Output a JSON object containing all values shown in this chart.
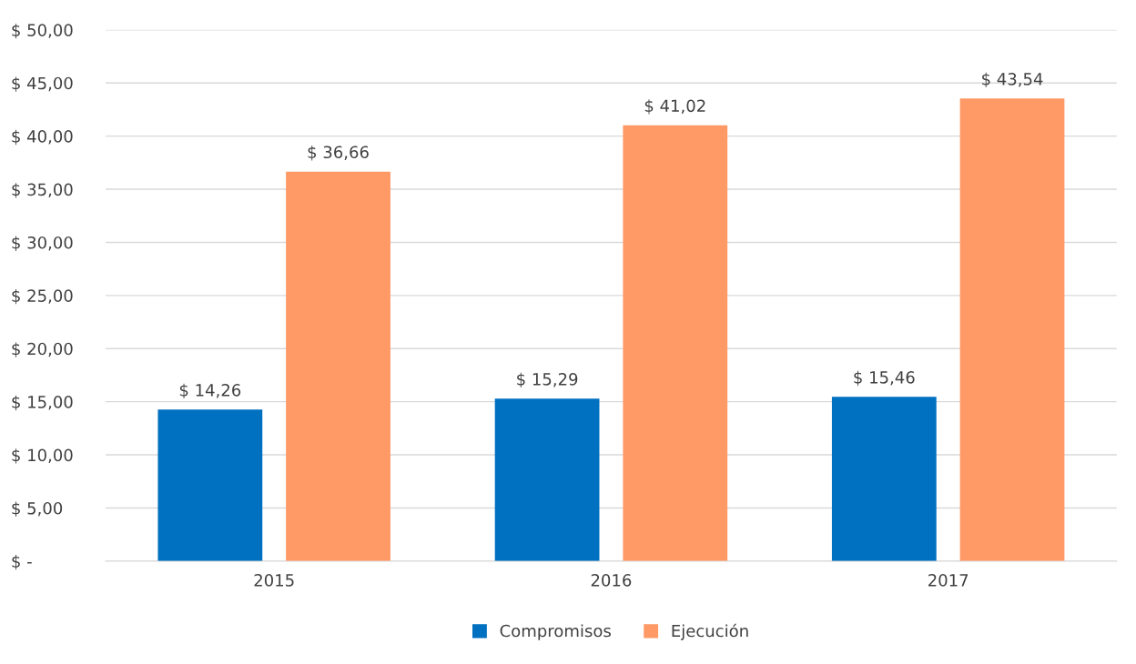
{
  "chart_data": {
    "type": "bar",
    "categories": [
      "2015",
      "2016",
      "2017"
    ],
    "series": [
      {
        "name": "Compromisos",
        "color": "#0070c0",
        "values": [
          14.26,
          15.29,
          15.46
        ],
        "value_labels": [
          "$ 14,26",
          "$ 15,29",
          "$ 15,46"
        ]
      },
      {
        "name": "Ejecución",
        "color": "#ff9966",
        "values": [
          36.66,
          41.02,
          43.54
        ],
        "value_labels": [
          "$ 36,66",
          "$ 41,02",
          "$ 43,54"
        ]
      }
    ],
    "ylim": [
      0,
      50
    ],
    "yticks": [
      {
        "value": 0,
        "label": "$ -"
      },
      {
        "value": 5,
        "label": "$ 5,00"
      },
      {
        "value": 10,
        "label": "$ 10,00"
      },
      {
        "value": 15,
        "label": "$ 15,00"
      },
      {
        "value": 20,
        "label": "$ 20,00"
      },
      {
        "value": 25,
        "label": "$ 25,00"
      },
      {
        "value": 30,
        "label": "$ 30,00"
      },
      {
        "value": 35,
        "label": "$ 35,00"
      },
      {
        "value": 40,
        "label": "$ 40,00"
      },
      {
        "value": 45,
        "label": "$ 45,00"
      },
      {
        "value": 50,
        "label": "$ 50,00"
      }
    ],
    "grid": "y",
    "legend": "bottom"
  }
}
